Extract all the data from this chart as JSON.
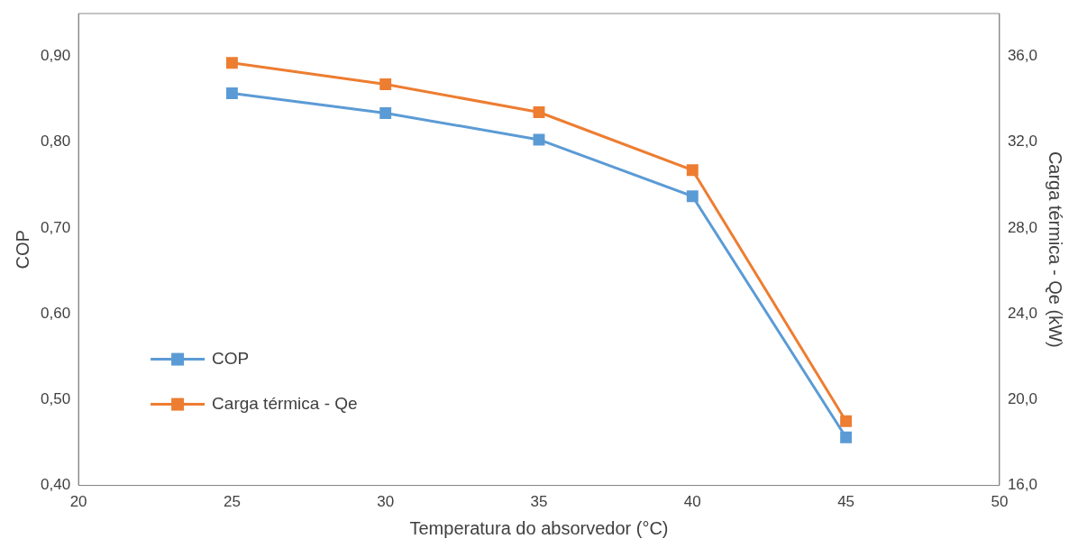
{
  "chart_data": {
    "type": "line",
    "xlabel": "Temperatura do absorvedor (°C)",
    "ylabel": "COP",
    "y2label": "Carga térmica - Qe (kW)",
    "x": [
      25,
      30,
      35,
      40,
      45
    ],
    "series": [
      {
        "name": "COP",
        "color": "#5b9bd5",
        "values": [
          0.857,
          0.834,
          0.803,
          0.737,
          0.456
        ]
      },
      {
        "name": "Carga térmica - Qe",
        "color": "#ed7d31",
        "axis": "y2",
        "values": [
          35.7,
          34.7,
          33.4,
          30.7,
          19.0
        ]
      }
    ],
    "xlim": [
      20,
      50
    ],
    "xticks": [
      20,
      25,
      30,
      35,
      40,
      45,
      50
    ],
    "ylim": [
      0.4,
      0.95
    ],
    "yticks": [
      {
        "value": 0.4,
        "label": "0,40"
      },
      {
        "value": 0.5,
        "label": "0,50"
      },
      {
        "value": 0.6,
        "label": "0,60"
      },
      {
        "value": 0.7,
        "label": "0,70"
      },
      {
        "value": 0.8,
        "label": "0,80"
      },
      {
        "value": 0.9,
        "label": "0,90"
      }
    ],
    "y2lim": [
      16,
      38
    ],
    "y2ticks": [
      {
        "value": 16,
        "label": "16,0"
      },
      {
        "value": 20,
        "label": "20,0"
      },
      {
        "value": 24,
        "label": "24,0"
      },
      {
        "value": 28,
        "label": "28,0"
      },
      {
        "value": 32,
        "label": "32,0"
      },
      {
        "value": 36,
        "label": "36,0"
      }
    ],
    "legend": "bottom left",
    "marker": "square",
    "line_style": "solid",
    "grid": false
  }
}
